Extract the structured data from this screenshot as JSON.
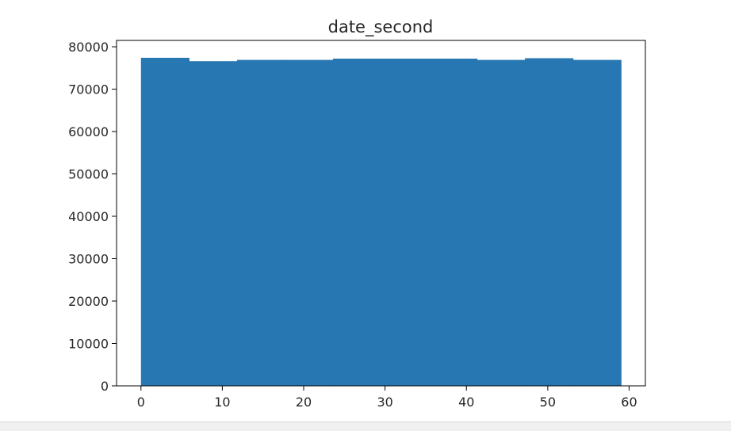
{
  "chart_data": {
    "type": "bar",
    "title": "date_second",
    "xlabel": "",
    "ylabel": "",
    "bin_edges": [
      0,
      5.9,
      11.8,
      17.7,
      23.6,
      29.5,
      35.4,
      41.3,
      47.2,
      53.1,
      59
    ],
    "values": [
      77400,
      76600,
      76900,
      76900,
      77200,
      77200,
      77200,
      76900,
      77300,
      76900
    ],
    "xlim": [
      -3,
      62
    ],
    "ylim": [
      0,
      81500
    ],
    "xticks": [
      0,
      10,
      20,
      30,
      40,
      50,
      60
    ],
    "xtick_labels": [
      "0",
      "10",
      "20",
      "30",
      "40",
      "50",
      "60"
    ],
    "yticks": [
      0,
      10000,
      20000,
      30000,
      40000,
      50000,
      60000,
      70000,
      80000
    ],
    "ytick_labels": [
      "0",
      "10000",
      "20000",
      "30000",
      "40000",
      "50000",
      "60000",
      "70000",
      "80000"
    ],
    "bar_color": "#2677b2",
    "grid": false
  }
}
